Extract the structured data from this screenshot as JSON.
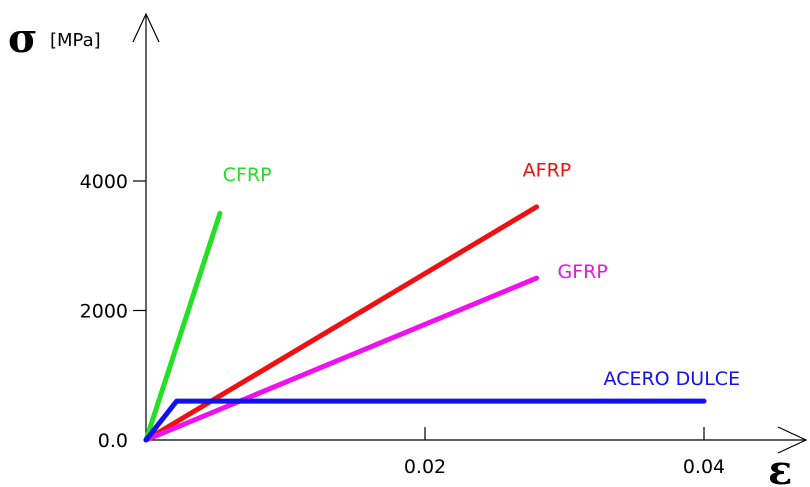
{
  "chart_data": {
    "type": "line",
    "title": "",
    "ylabel_symbol": "σ",
    "ylabel_unit": "[MPa]",
    "xlabel_symbol": "ε",
    "xlim": [
      0,
      0.05
    ],
    "ylim": [
      0,
      6500
    ],
    "xticks": [
      {
        "value": 0.02,
        "label": "0.02"
      },
      {
        "value": 0.04,
        "label": "0.04"
      }
    ],
    "yticks": [
      {
        "value": 0,
        "label": "0.0"
      },
      {
        "value": 2000,
        "label": "2000"
      },
      {
        "value": 4000,
        "label": "4000"
      }
    ],
    "grid": false,
    "legend": "inline labels",
    "series": [
      {
        "name": "CFRP",
        "color": "#22e022",
        "points": [
          [
            0,
            0
          ],
          [
            0.0053,
            3500
          ]
        ],
        "label_at": [
          0.0055,
          4000
        ]
      },
      {
        "name": "AFRP",
        "color": "#ee1111",
        "points": [
          [
            0,
            0
          ],
          [
            0.028,
            3600
          ]
        ],
        "label_at": [
          0.027,
          4070
        ]
      },
      {
        "name": "GFRP",
        "color": "#ee11ee",
        "points": [
          [
            0,
            0
          ],
          [
            0.028,
            2500
          ]
        ],
        "label_at": [
          0.0295,
          2500
        ]
      },
      {
        "name": "ACERO DULCE",
        "color": "#1111ee",
        "points": [
          [
            0,
            0
          ],
          [
            0.0022,
            600
          ],
          [
            0.04,
            600
          ]
        ],
        "label_at": [
          0.0328,
          850
        ]
      }
    ]
  }
}
